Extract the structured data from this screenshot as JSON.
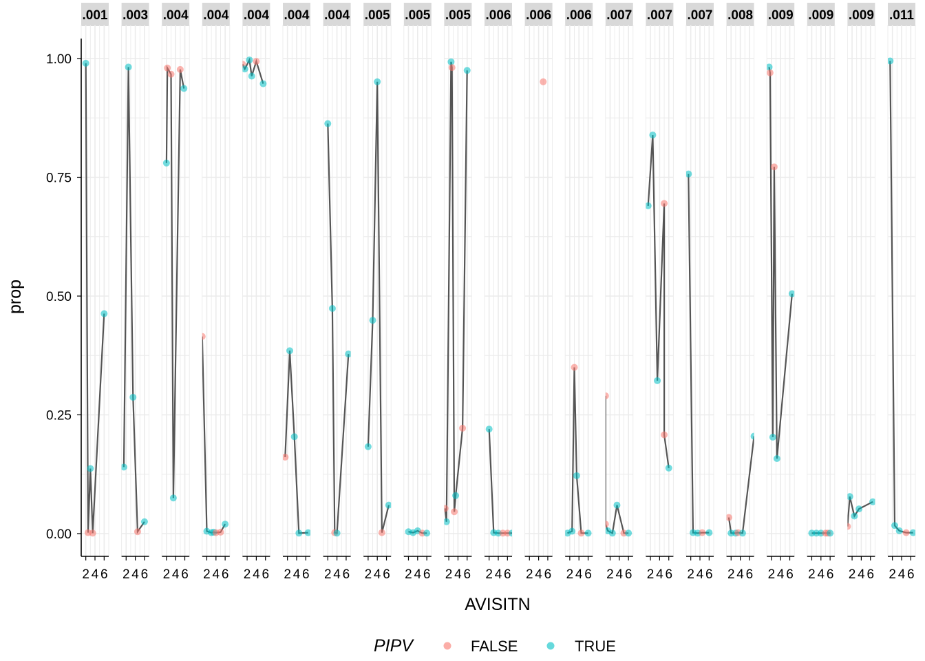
{
  "chart_data": {
    "type": "line",
    "xlabel": "AVISITN",
    "ylabel": "prop",
    "ylim": [
      0,
      1
    ],
    "yticks": [
      0.0,
      0.25,
      0.5,
      0.75,
      1.0
    ],
    "ytick_labels": [
      "0.00",
      "0.25",
      "0.50",
      "0.75",
      "1.00"
    ],
    "xlim": [
      1,
      7
    ],
    "xticks": [
      2,
      4,
      6
    ],
    "xtick_labels": [
      "2",
      "4",
      "6"
    ],
    "legend": {
      "title": "PIPV",
      "position": "bottom",
      "entries": [
        {
          "label": "FALSE",
          "color": "#F8766D"
        },
        {
          "label": "TRUE",
          "color": "#00BFC4"
        }
      ]
    },
    "grid": true,
    "line_color": "#555555",
    "panels": [
      {
        "strip": ".001",
        "points": [
          [
            2,
            0.99,
            true
          ],
          [
            2.5,
            0.002,
            false
          ],
          [
            3,
            0.137,
            true
          ],
          [
            3.5,
            0.001,
            false
          ],
          [
            6,
            0.463,
            true
          ]
        ]
      },
      {
        "strip": ".003",
        "points": [
          [
            1.5,
            0.14,
            true
          ],
          [
            2.5,
            0.982,
            true
          ],
          [
            3.5,
            0.287,
            true
          ],
          [
            4.5,
            0.004,
            false
          ],
          [
            6,
            0.025,
            true
          ]
        ]
      },
      {
        "strip": ".004",
        "points": [
          [
            2,
            0.78,
            true
          ],
          [
            2.2,
            0.98,
            false
          ],
          [
            3,
            0.967,
            false
          ],
          [
            3.5,
            0.075,
            true
          ],
          [
            5,
            0.977,
            false
          ],
          [
            5.8,
            0.937,
            true
          ]
        ]
      },
      {
        "strip": ".004",
        "points": [
          [
            1,
            0.415,
            false
          ],
          [
            2,
            0.005,
            true
          ],
          [
            3,
            0.002,
            true
          ],
          [
            3.5,
            0.003,
            true
          ],
          [
            4,
            0.002,
            false
          ],
          [
            5,
            0.003,
            false
          ],
          [
            6,
            0.02,
            true
          ]
        ]
      },
      {
        "strip": ".004",
        "points": [
          [
            1,
            0.988,
            false
          ],
          [
            1.5,
            0.978,
            true
          ],
          [
            2.5,
            0.997,
            true
          ],
          [
            3,
            0.963,
            true
          ],
          [
            4,
            0.994,
            false
          ],
          [
            5.5,
            0.947,
            true
          ]
        ]
      },
      {
        "strip": ".004",
        "points": [
          [
            1.5,
            0.161,
            false
          ],
          [
            2.5,
            0.385,
            true
          ],
          [
            3.5,
            0.204,
            true
          ],
          [
            4.5,
            0.001,
            true
          ],
          [
            6.5,
            0.002,
            true
          ]
        ]
      },
      {
        "strip": ".004",
        "points": [
          [
            2,
            0.863,
            true
          ],
          [
            3,
            0.474,
            true
          ],
          [
            3.5,
            0.002,
            false
          ],
          [
            4,
            0.001,
            true
          ],
          [
            6.5,
            0.378,
            true
          ]
        ]
      },
      {
        "strip": ".005",
        "points": [
          [
            2,
            0.183,
            true
          ],
          [
            3,
            0.449,
            true
          ],
          [
            4,
            0.951,
            true
          ],
          [
            5,
            0.002,
            false
          ],
          [
            6.5,
            0.06,
            true
          ]
        ]
      },
      {
        "strip": ".005",
        "points": [
          [
            2,
            0.004,
            true
          ],
          [
            3,
            0.002,
            true
          ],
          [
            4,
            0.006,
            true
          ],
          [
            5,
            0.001,
            false
          ],
          [
            6,
            0.001,
            true
          ]
        ]
      },
      {
        "strip": ".005",
        "points": [
          [
            1.2,
            0.053,
            false
          ],
          [
            1.5,
            0.025,
            true
          ],
          [
            2.5,
            0.993,
            true
          ],
          [
            2.7,
            0.981,
            false
          ],
          [
            3.2,
            0.046,
            false
          ],
          [
            3.5,
            0.08,
            true
          ],
          [
            5,
            0.222,
            false
          ],
          [
            6,
            0.975,
            true
          ]
        ]
      },
      {
        "strip": ".006",
        "points": [
          [
            2,
            0.22,
            true
          ],
          [
            3,
            0.002,
            true
          ],
          [
            4,
            0.001,
            true
          ],
          [
            5,
            0.001,
            false
          ],
          [
            6,
            0.001,
            false
          ],
          [
            7,
            0.001,
            true
          ]
        ]
      },
      {
        "strip": ".006",
        "points": [
          [
            5,
            0.951,
            false
          ]
        ]
      },
      {
        "strip": ".006",
        "points": [
          [
            1.5,
            0.001,
            true
          ],
          [
            2.5,
            0.005,
            true
          ],
          [
            3,
            0.35,
            false
          ],
          [
            3.5,
            0.122,
            true
          ],
          [
            4.5,
            0.001,
            false
          ],
          [
            6,
            0.001,
            true
          ]
        ]
      },
      {
        "strip": ".007",
        "points": [
          [
            1,
            0.29,
            false
          ],
          [
            1,
            0.02,
            false
          ],
          [
            1.5,
            0.006,
            true
          ],
          [
            2.5,
            0.001,
            true
          ],
          [
            3.5,
            0.06,
            true
          ],
          [
            5,
            0.001,
            false
          ],
          [
            6,
            0.001,
            true
          ]
        ]
      },
      {
        "strip": ".007",
        "points": [
          [
            1.5,
            0.69,
            true
          ],
          [
            2.5,
            0.839,
            true
          ],
          [
            3.5,
            0.322,
            true
          ],
          [
            5,
            0.695,
            false
          ],
          [
            5,
            0.208,
            false
          ],
          [
            6,
            0.138,
            true
          ]
        ]
      },
      {
        "strip": ".007",
        "points": [
          [
            1.5,
            0.757,
            true
          ],
          [
            2.5,
            0.002,
            true
          ],
          [
            3.5,
            0.001,
            true
          ],
          [
            4.5,
            0.002,
            false
          ],
          [
            6,
            0.002,
            true
          ]
        ]
      },
      {
        "strip": ".008",
        "points": [
          [
            1.5,
            0.034,
            false
          ],
          [
            2,
            0.001,
            true
          ],
          [
            3,
            0.001,
            true
          ],
          [
            3.5,
            0.002,
            false
          ],
          [
            4.5,
            0.001,
            true
          ],
          [
            7,
            0.205,
            true
          ]
        ]
      },
      {
        "strip": ".009",
        "points": [
          [
            1.5,
            0.982,
            true
          ],
          [
            1.7,
            0.97,
            false
          ],
          [
            2.3,
            0.203,
            true
          ],
          [
            2.6,
            0.772,
            false
          ],
          [
            3.2,
            0.158,
            true
          ],
          [
            6.5,
            0.505,
            true
          ]
        ]
      },
      {
        "strip": ".009",
        "points": [
          [
            2,
            0.001,
            true
          ],
          [
            3,
            0.001,
            true
          ],
          [
            4,
            0.001,
            true
          ],
          [
            5,
            0.001,
            false
          ],
          [
            5.5,
            0.001,
            false
          ],
          [
            6,
            0.001,
            true
          ]
        ]
      },
      {
        "strip": ".009",
        "points": [
          [
            1,
            0.015,
            false
          ],
          [
            1.5,
            0.078,
            true
          ],
          [
            2.5,
            0.037,
            true
          ],
          [
            3.5,
            0.052,
            true
          ],
          [
            6.5,
            0.067,
            true
          ]
        ]
      },
      {
        "strip": ".011",
        "points": [
          [
            1.5,
            0.995,
            true
          ],
          [
            2.5,
            0.017,
            true
          ],
          [
            3.5,
            0.006,
            true
          ],
          [
            5,
            0.002,
            false
          ],
          [
            6.5,
            0.002,
            true
          ]
        ]
      }
    ]
  }
}
